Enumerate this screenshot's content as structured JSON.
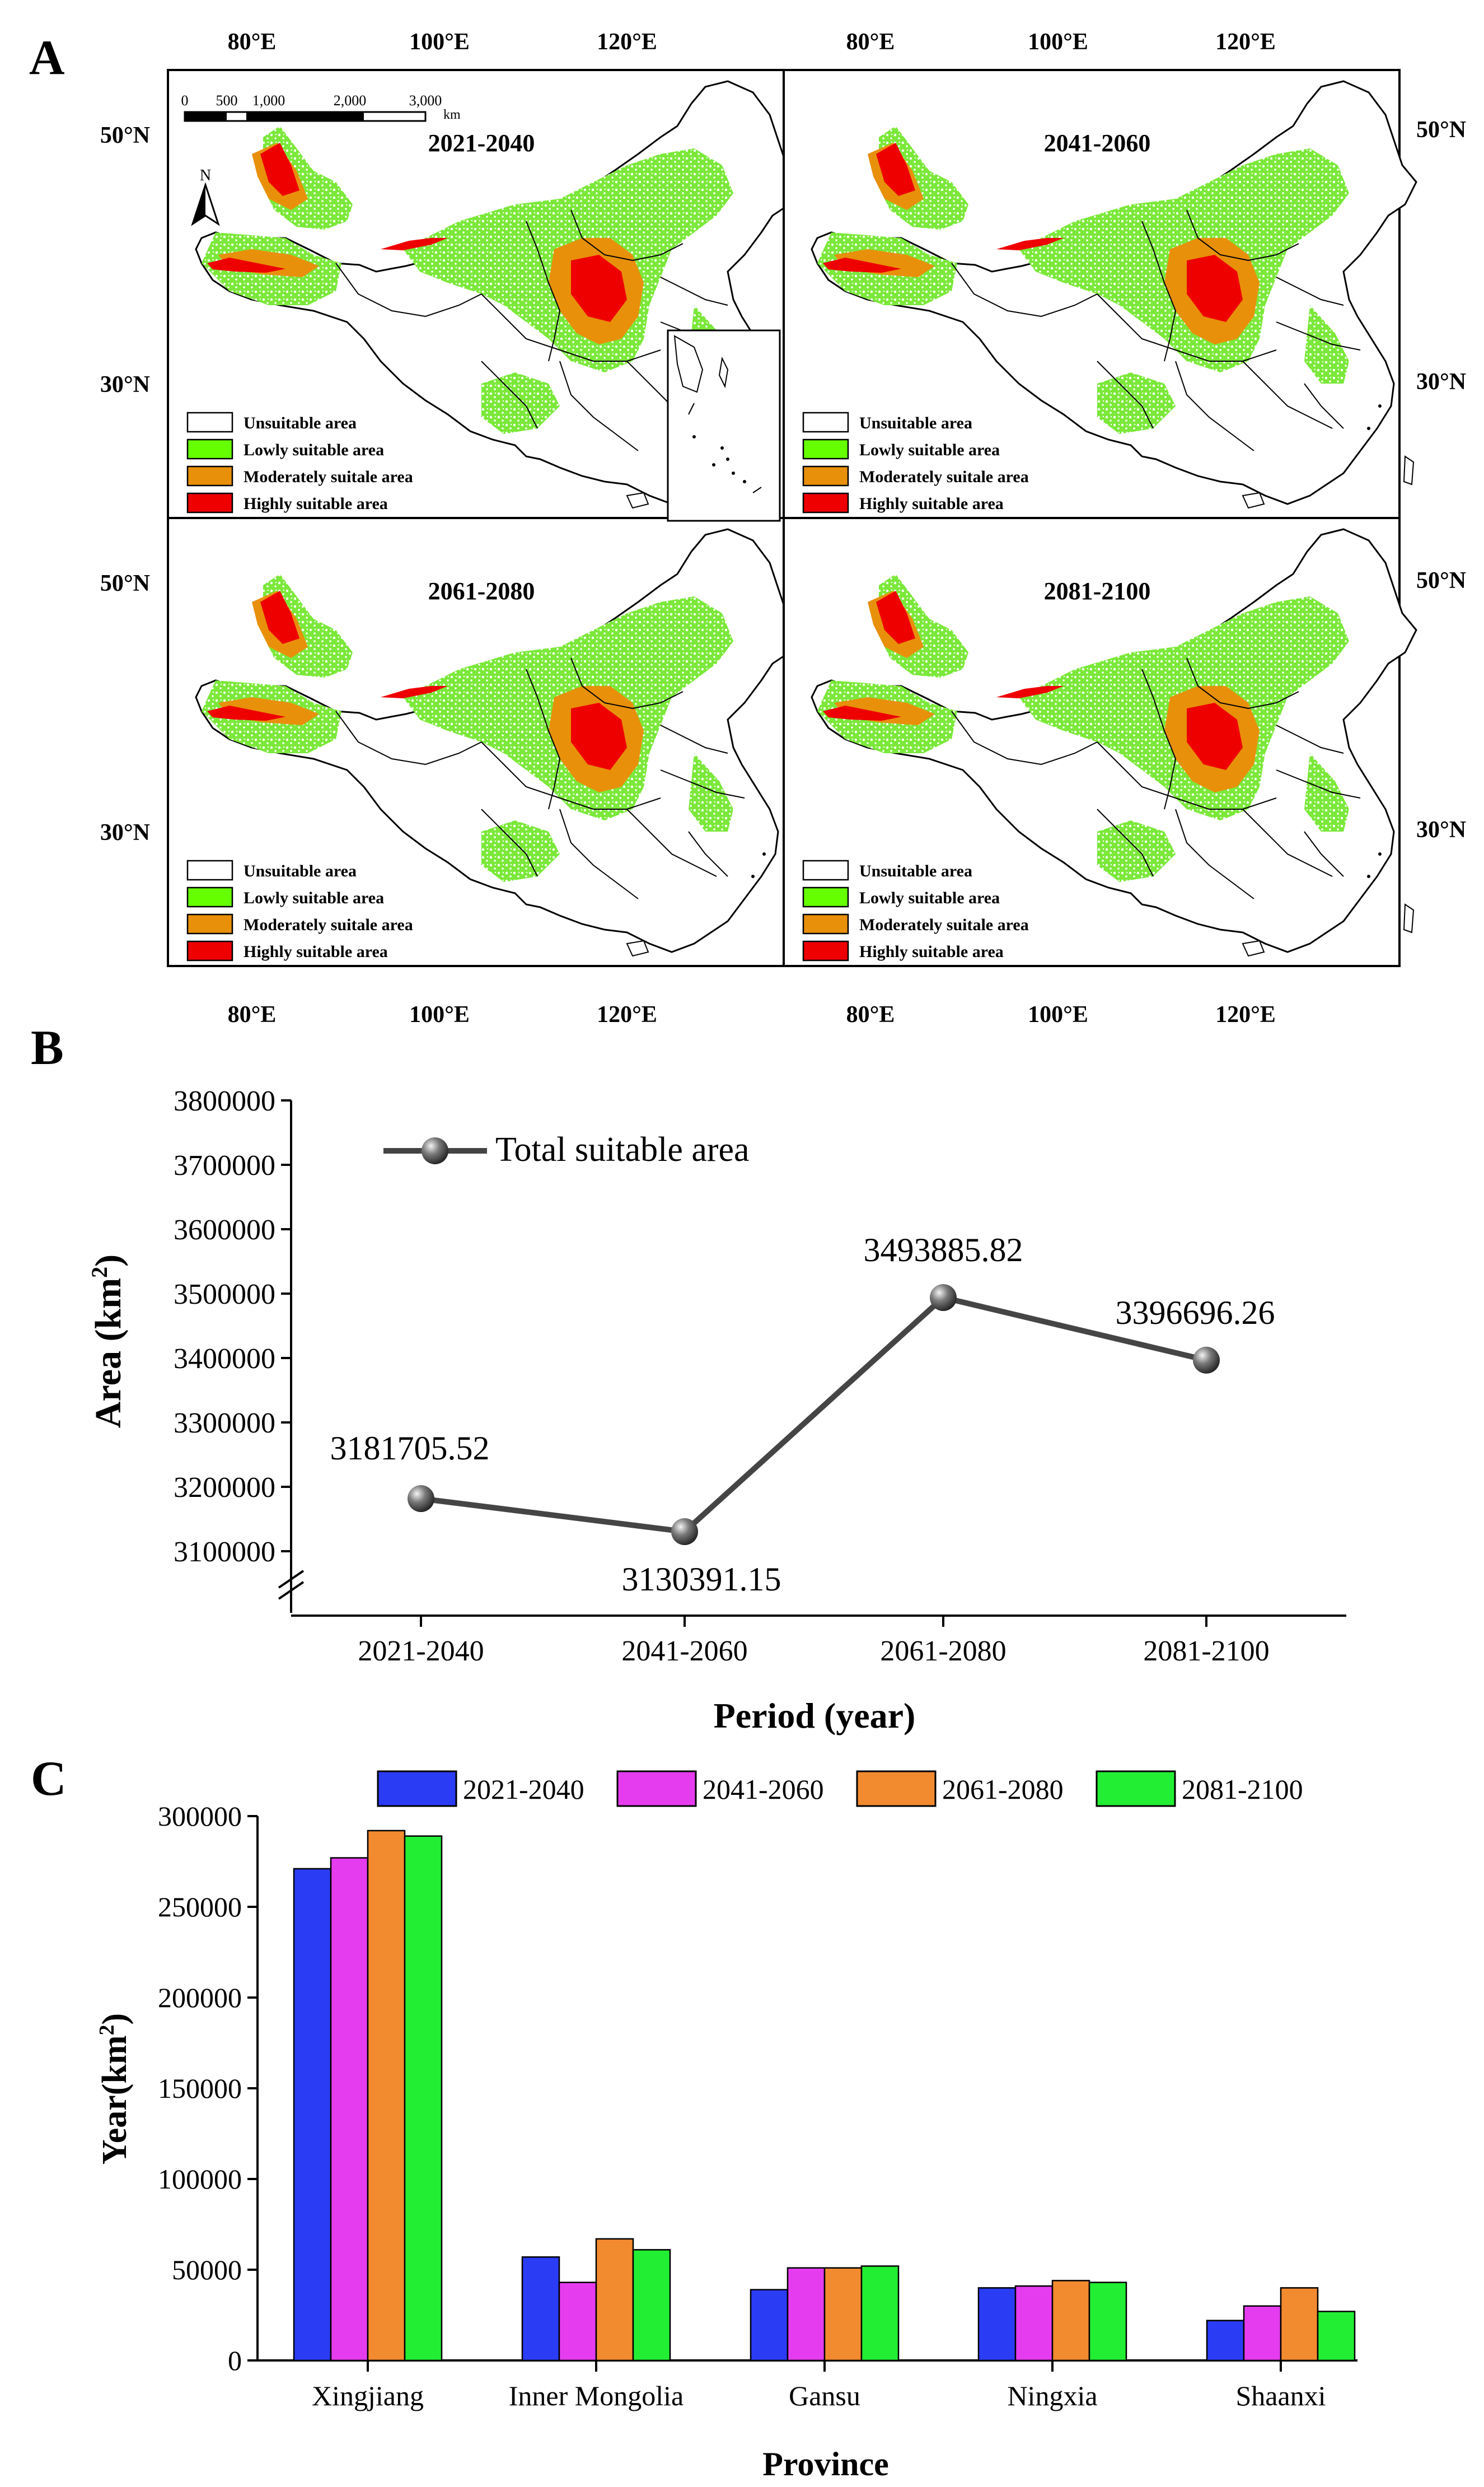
{
  "panel_labels": {
    "a": "A",
    "b": "B",
    "c": "C"
  },
  "maps": {
    "periods": [
      "2021-2040",
      "2041-2060",
      "2061-2080",
      "2081-2100"
    ],
    "lon_ticks": [
      "80°E",
      "100°E",
      "120°E"
    ],
    "lat_ticks": [
      "50°N",
      "30°N"
    ],
    "scale_ticks": [
      "0",
      "500",
      "1,000",
      "2,000",
      "3,000"
    ],
    "scale_unit": "km",
    "north_label": "N",
    "legend": [
      {
        "label": "Unsuitable area",
        "color": "#ffffff"
      },
      {
        "label": "Lowly suitable area",
        "color": "#66ff00"
      },
      {
        "label": "Moderately suitale area",
        "color": "#e8900a"
      },
      {
        "label": "Highly suitable area",
        "color": "#ee0000"
      }
    ]
  },
  "chart_data": [
    {
      "type": "line",
      "legend": "Total suitable area",
      "categories": [
        "2021-2040",
        "2041-2060",
        "2061-2080",
        "2081-2100"
      ],
      "values": [
        3181705.52,
        3130391.15,
        3493885.82,
        3396696.26
      ],
      "value_labels": [
        "3181705.52",
        "3130391.15",
        "3493885.82",
        "3396696.26"
      ],
      "xlabel": "Period (year)",
      "ylabel": "Area (km",
      "ylabel_sup": "2",
      "ylabel_close": ")",
      "ylim": [
        3000000,
        3800000
      ],
      "yticks": [
        3100000,
        3200000,
        3300000,
        3400000,
        3500000,
        3600000,
        3700000,
        3800000
      ],
      "ytick_labels": [
        "3100000",
        "3200000",
        "3300000",
        "3400000",
        "3500000",
        "3600000",
        "3700000",
        "3800000"
      ],
      "axis_break": true
    },
    {
      "type": "bar",
      "categories": [
        "Xingjiang",
        "Inner Mongolia",
        "Gansu",
        "Ningxia",
        "Shaanxi"
      ],
      "series": [
        {
          "name": "2021-2040",
          "color": "#2b3cf5",
          "values": [
            271000,
            57000,
            39000,
            40000,
            22000
          ]
        },
        {
          "name": "2041-2060",
          "color": "#e63cf0",
          "values": [
            277000,
            43000,
            51000,
            41000,
            30000
          ]
        },
        {
          "name": "2061-2080",
          "color": "#f28a30",
          "values": [
            292000,
            67000,
            51000,
            44000,
            40000
          ]
        },
        {
          "name": "2081-2100",
          "color": "#22ee33",
          "values": [
            289000,
            61000,
            52000,
            43000,
            27000
          ]
        }
      ],
      "xlabel": "Province",
      "ylabel": "Year(km",
      "ylabel_sup": "2",
      "ylabel_close": ")",
      "ylim": [
        0,
        300000
      ],
      "yticks": [
        0,
        50000,
        100000,
        150000,
        200000,
        250000,
        300000
      ],
      "ytick_labels": [
        "0",
        "50000",
        "100000",
        "150000",
        "200000",
        "250000",
        "300000"
      ]
    }
  ]
}
